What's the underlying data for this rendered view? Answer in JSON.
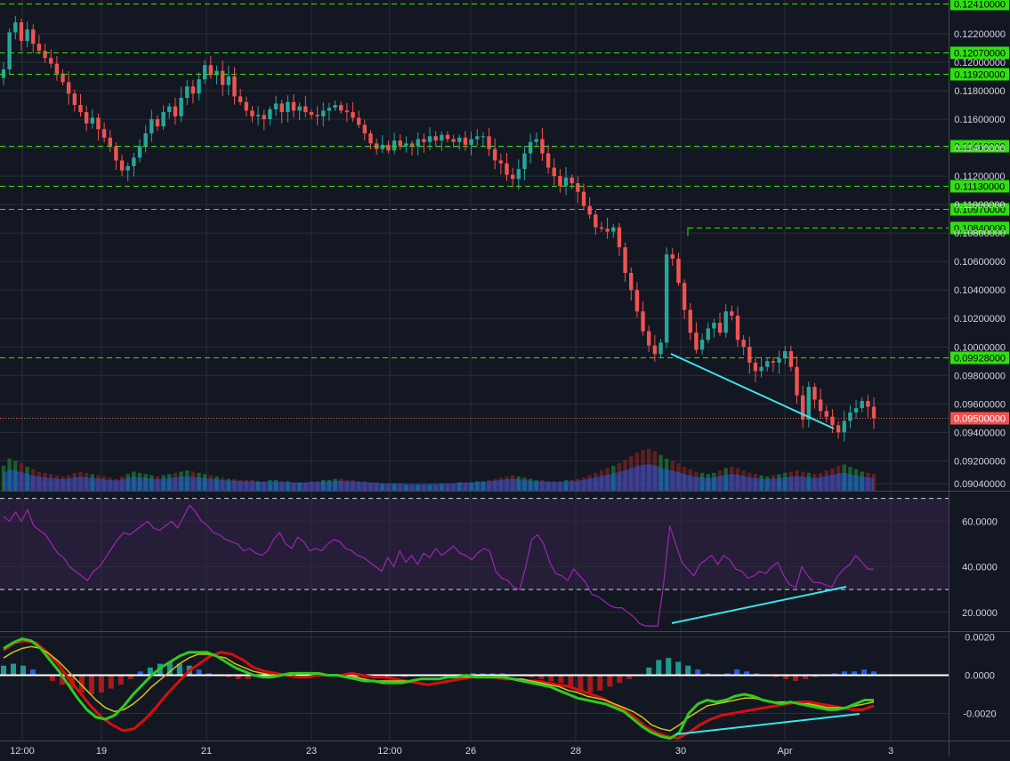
{
  "colors": {
    "background": "#131722",
    "grid": "#2a2e39",
    "up_candle": "#26a69a",
    "down_candle": "#ef5350",
    "level_line": "#3cdc14",
    "level_tag": "#2ee00f",
    "current_price_tag": "#ef5350",
    "volume_area": "#2962ff",
    "rsi_line": "#9c27b0",
    "rsi_band": "#2a1f3d",
    "macd_fast": "#2ecc1f",
    "macd_slow": "#d4c21a",
    "macd_signal_fast": "#d60f0f",
    "divergence_line": "#38e6f0",
    "axis_text": "#d1d4dc"
  },
  "price_axis": {
    "ticks": [
      "0.12200000",
      "0.12000000",
      "0.11800000",
      "0.11600000",
      "0.11400000",
      "0.11200000",
      "0.11000000",
      "0.10800000",
      "0.10600000",
      "0.10400000",
      "0.10200000",
      "0.10000000",
      "0.09800000",
      "0.09600000",
      "0.09400000",
      "0.09200000",
      "0.09040000"
    ],
    "levels": [
      "0.12410000",
      "0.12070000",
      "0.11920000",
      "0.11410000",
      "0.11130000",
      "0.10970000",
      "0.10840000",
      "0.09928000"
    ],
    "current_price": "0.09500000"
  },
  "rsi_axis": {
    "ticks": [
      "60.0000",
      "40.0000",
      "20.0000"
    ]
  },
  "macd_axis": {
    "ticks": [
      "0.0020",
      "0.0000",
      "-0.0020"
    ]
  },
  "time_axis": {
    "ticks": [
      "12:00",
      "19",
      "21",
      "23",
      "12:00",
      "26",
      "28",
      "30",
      "Apr",
      "3"
    ]
  },
  "chart_data": [
    {
      "type": "candlestick",
      "title": "",
      "ylim": [
        0.0904,
        0.1251
      ],
      "close": [
        0.1195,
        0.1221,
        0.1228,
        0.1215,
        0.1223,
        0.1213,
        0.1208,
        0.1203,
        0.1199,
        0.1192,
        0.1186,
        0.1178,
        0.117,
        0.1165,
        0.1157,
        0.1161,
        0.1153,
        0.1147,
        0.1141,
        0.1131,
        0.1124,
        0.1127,
        0.1133,
        0.1141,
        0.115,
        0.116,
        0.1155,
        0.1165,
        0.1169,
        0.1162,
        0.1175,
        0.1183,
        0.1178,
        0.1188,
        0.1198,
        0.1191,
        0.1194,
        0.1184,
        0.119,
        0.1176,
        0.1172,
        0.1166,
        0.1162,
        0.1163,
        0.116,
        0.1167,
        0.1171,
        0.1165,
        0.1172,
        0.1166,
        0.1169,
        0.1165,
        0.1163,
        0.1162,
        0.1166,
        0.1168,
        0.117,
        0.1166,
        0.1165,
        0.1161,
        0.1156,
        0.115,
        0.1143,
        0.1139,
        0.1142,
        0.1138,
        0.1145,
        0.1141,
        0.1143,
        0.1141,
        0.1146,
        0.1144,
        0.1148,
        0.1145,
        0.1149,
        0.1146,
        0.1144,
        0.1147,
        0.1142,
        0.1146,
        0.1148,
        0.1148,
        0.1139,
        0.1131,
        0.1129,
        0.1121,
        0.1118,
        0.1125,
        0.1136,
        0.1144,
        0.1146,
        0.1136,
        0.1126,
        0.112,
        0.1113,
        0.1119,
        0.1115,
        0.1109,
        0.1099,
        0.1093,
        0.1084,
        0.1083,
        0.1081,
        0.1084,
        0.107,
        0.1052,
        0.104,
        0.1025,
        0.1011,
        0.1001,
        0.0995,
        0.1003,
        0.1065,
        0.1062,
        0.1045,
        0.1026,
        0.101,
        0.0998,
        0.1005,
        0.1013,
        0.1017,
        0.101,
        0.1025,
        0.1022,
        0.1005,
        0.1,
        0.0989,
        0.0983,
        0.0986,
        0.099,
        0.0989,
        0.0992,
        0.0997,
        0.0986,
        0.0966,
        0.0949,
        0.0972,
        0.0963,
        0.0955,
        0.0951,
        0.0945,
        0.094,
        0.0948,
        0.0954,
        0.0957,
        0.0962,
        0.0958,
        0.095
      ],
      "volume": [
        2.1,
        2.7,
        2.5,
        2.3,
        2.0,
        1.8,
        1.6,
        1.5,
        1.4,
        1.3,
        1.2,
        1.3,
        1.5,
        1.6,
        1.5,
        1.4,
        1.3,
        1.2,
        1.1,
        1.0,
        1.2,
        1.4,
        1.6,
        1.5,
        1.4,
        1.3,
        1.2,
        1.3,
        1.4,
        1.5,
        1.6,
        1.7,
        1.6,
        1.5,
        1.4,
        1.3,
        1.2,
        1.1,
        1.0,
        1.0,
        0.9,
        0.9,
        0.9,
        0.8,
        0.8,
        0.9,
        0.9,
        0.8,
        0.8,
        0.7,
        0.7,
        0.7,
        0.8,
        0.8,
        0.9,
        0.9,
        1.0,
        1.0,
        0.9,
        0.9,
        0.8,
        0.8,
        0.7,
        0.7,
        0.6,
        0.6,
        0.6,
        0.6,
        0.5,
        0.5,
        0.5,
        0.5,
        0.5,
        0.5,
        0.6,
        0.6,
        0.6,
        0.7,
        0.7,
        0.7,
        0.8,
        0.8,
        0.9,
        1.0,
        1.1,
        1.2,
        1.3,
        1.2,
        1.1,
        1.0,
        0.9,
        0.9,
        0.8,
        0.8,
        0.8,
        0.9,
        0.9,
        1.0,
        1.1,
        1.3,
        1.5,
        1.7,
        1.9,
        2.1,
        2.3,
        2.6,
        2.9,
        3.2,
        3.4,
        3.5,
        3.3,
        3.0,
        2.7,
        2.5,
        2.3,
        2.0,
        1.8,
        1.6,
        1.5,
        1.4,
        1.5,
        1.7,
        1.9,
        2.0,
        1.9,
        1.7,
        1.5,
        1.4,
        1.3,
        1.2,
        1.3,
        1.4,
        1.5,
        1.6,
        1.7,
        1.6,
        1.5,
        1.4,
        1.5,
        1.7,
        1.9,
        2.1,
        2.2,
        2.0,
        1.8,
        1.6,
        1.5,
        1.4
      ]
    },
    {
      "type": "line",
      "title": "",
      "ylim": [
        10,
        70
      ],
      "bands": [
        30,
        70
      ],
      "values": [
        62,
        60,
        64,
        60,
        65,
        58,
        56,
        54,
        50,
        46,
        44,
        40,
        38,
        36,
        34,
        38,
        40,
        44,
        48,
        52,
        55,
        54,
        56,
        58,
        60,
        57,
        56,
        58,
        60,
        57,
        62,
        67,
        64,
        60,
        58,
        55,
        54,
        52,
        51,
        50,
        47,
        48,
        46,
        45,
        47,
        52,
        55,
        50,
        48,
        53,
        51,
        47,
        48,
        47,
        50,
        52,
        51,
        48,
        47,
        45,
        44,
        42,
        40,
        38,
        44,
        40,
        47,
        42,
        45,
        41,
        46,
        44,
        48,
        45,
        47,
        49,
        46,
        45,
        43,
        46,
        48,
        47,
        38,
        35,
        34,
        31,
        30,
        40,
        52,
        54,
        50,
        42,
        37,
        36,
        34,
        39,
        36,
        33,
        28,
        27,
        25,
        23,
        22,
        22,
        20,
        18,
        15,
        14,
        14,
        14,
        33,
        58,
        50,
        42,
        39,
        36,
        41,
        43,
        45,
        41,
        45,
        43,
        39,
        38,
        35,
        36,
        38,
        37,
        40,
        42,
        36,
        32,
        31,
        40,
        36,
        33,
        33,
        32,
        31,
        36,
        39,
        41,
        45,
        42,
        39,
        39
      ]
    },
    {
      "type": "line",
      "title": "",
      "ylim": [
        -0.0035,
        0.0022
      ],
      "series": [
        {
          "values": [
            0.0014,
            0.0017,
            0.0019,
            0.0018,
            0.0014,
            0.0008,
            0.0002,
            -0.0005,
            -0.0012,
            -0.0018,
            -0.0022,
            -0.0023,
            -0.0021,
            -0.0016,
            -0.001,
            -0.0005,
            0.0,
            0.0004,
            0.0007,
            0.001,
            0.0012,
            0.0012,
            0.0012,
            0.001,
            0.0007,
            0.0004,
            0.0002,
            0.0,
            -0.0001,
            -0.0001,
            0.0,
            0.0001,
            0.0001,
            0.0001,
            0.0001,
            0.0,
            0.0,
            -0.0001,
            -0.0002,
            -0.0003,
            -0.0003,
            -0.0004,
            -0.0004,
            -0.0004,
            -0.0003,
            -0.0002,
            -0.0002,
            -0.0002,
            -0.0001,
            -0.0001,
            0.0,
            -0.0001,
            -0.0001,
            -0.0001,
            -0.0001,
            -0.0002,
            -0.0003,
            -0.0004,
            -0.0005,
            -0.0006,
            -0.0008,
            -0.001,
            -0.0012,
            -0.0013,
            -0.0014,
            -0.0015,
            -0.0017,
            -0.0019,
            -0.0023,
            -0.0027,
            -0.003,
            -0.0032,
            -0.0033,
            -0.003,
            -0.002,
            -0.0015,
            -0.0013,
            -0.0014,
            -0.0013,
            -0.0011,
            -0.001,
            -0.0011,
            -0.0013,
            -0.0014,
            -0.0015,
            -0.0014,
            -0.0015,
            -0.0016,
            -0.0017,
            -0.0018,
            -0.0018,
            -0.0017,
            -0.0015,
            -0.0013,
            -0.0013
          ]
        },
        {
          "values": [
            0.0009,
            0.0012,
            0.0014,
            0.0015,
            0.0014,
            0.0011,
            0.0007,
            0.0002,
            -0.0003,
            -0.0008,
            -0.0013,
            -0.0017,
            -0.0019,
            -0.0018,
            -0.0015,
            -0.0011,
            -0.0006,
            -0.0002,
            0.0002,
            0.0006,
            0.0009,
            0.0011,
            0.0011,
            0.001,
            0.0009,
            0.0006,
            0.0004,
            0.0002,
            0.0001,
            0.0,
            0.0,
            0.0,
            0.0001,
            0.0001,
            0.0001,
            0.0,
            0.0,
            -0.0001,
            -0.0001,
            -0.0002,
            -0.0003,
            -0.0003,
            -0.0003,
            -0.0003,
            -0.0003,
            -0.0002,
            -0.0002,
            -0.0002,
            -0.0001,
            -0.0001,
            -0.0001,
            -0.0001,
            -0.0001,
            -0.0001,
            -0.0001,
            -0.0002,
            -0.0002,
            -0.0003,
            -0.0004,
            -0.0005,
            -0.0006,
            -0.0008,
            -0.0009,
            -0.0011,
            -0.0012,
            -0.0013,
            -0.0015,
            -0.0017,
            -0.0019,
            -0.0022,
            -0.0026,
            -0.0028,
            -0.0029,
            -0.0026,
            -0.0022,
            -0.0019,
            -0.0016,
            -0.0015,
            -0.0014,
            -0.0013,
            -0.0012,
            -0.0012,
            -0.0013,
            -0.0014,
            -0.0014,
            -0.0014,
            -0.0015,
            -0.0015,
            -0.0016,
            -0.0017,
            -0.0017,
            -0.0017,
            -0.0016,
            -0.0015,
            -0.0014
          ]
        },
        {
          "values": [
            0.0013,
            0.0017,
            0.0018,
            0.0017,
            0.0012,
            0.0006,
            -0.0002,
            -0.0009,
            -0.0016,
            -0.0022,
            -0.0026,
            -0.0029,
            -0.0028,
            -0.0023,
            -0.0017,
            -0.001,
            -0.0004,
            0.0002,
            0.0006,
            0.001,
            0.0012,
            0.0011,
            0.0008,
            0.0004,
            0.0002,
            0.0001,
            0.0,
            -0.0001,
            -0.0001,
            0.0,
            0.0,
            0.0,
            0.0001,
            0.0,
            -0.0001,
            -0.0001,
            -0.0002,
            -0.0003,
            -0.0004,
            -0.0005,
            -0.0004,
            -0.0003,
            -0.0002,
            -0.0001,
            -0.0001,
            -0.0001,
            -0.0002,
            -0.0002,
            -0.0003,
            -0.0003,
            -0.0004,
            -0.0005,
            -0.0006,
            -0.0008,
            -0.001,
            -0.0012,
            -0.0015,
            -0.0018,
            -0.0022,
            -0.0027,
            -0.003,
            -0.0032,
            -0.0033,
            -0.003,
            -0.0026,
            -0.0023,
            -0.0021,
            -0.002,
            -0.0019,
            -0.0018,
            -0.0017,
            -0.0016,
            -0.0015,
            -0.0014,
            -0.0014,
            -0.0015,
            -0.0016,
            -0.0017,
            -0.0018,
            -0.0018,
            -0.0016
          ]
        }
      ],
      "histogram": [
        0.0005,
        0.0006,
        0.0005,
        0.0003,
        0.0,
        -0.0003,
        -0.0005,
        -0.0007,
        -0.0009,
        -0.001,
        -0.0009,
        -0.0007,
        -0.0005,
        -0.0002,
        0.0002,
        0.0004,
        0.0006,
        0.0007,
        0.0006,
        0.0005,
        0.0003,
        0.0001,
        0.0,
        -0.0001,
        -0.0002,
        -0.0002,
        -0.0001,
        -0.0001,
        0.0,
        0.0,
        0.0,
        0.0001,
        0.0,
        0.0,
        0.0,
        -0.0001,
        -0.0001,
        -0.0001,
        -0.0001,
        -0.0001,
        0.0,
        -0.0001,
        0.0,
        0.0,
        0.0,
        0.0,
        0.0,
        0.0,
        0.0001,
        0.0001,
        0.0001,
        0.0001,
        0.0,
        0.0,
        -0.0001,
        -0.0002,
        -0.0003,
        -0.0004,
        -0.0006,
        -0.0008,
        -0.0009,
        -0.0008,
        -0.0006,
        -0.0004,
        -0.0002,
        0.0,
        0.0004,
        0.0008,
        0.0009,
        0.0007,
        0.0005,
        0.0003,
        0.0001,
        0.0,
        0.0001,
        0.0003,
        0.0002,
        0.0001,
        0.0,
        -0.0001,
        -0.0002,
        -0.0003,
        -0.0002,
        -0.0001,
        0.0,
        0.0001,
        0.0002,
        0.0002,
        0.0003,
        0.0002
      ]
    }
  ]
}
